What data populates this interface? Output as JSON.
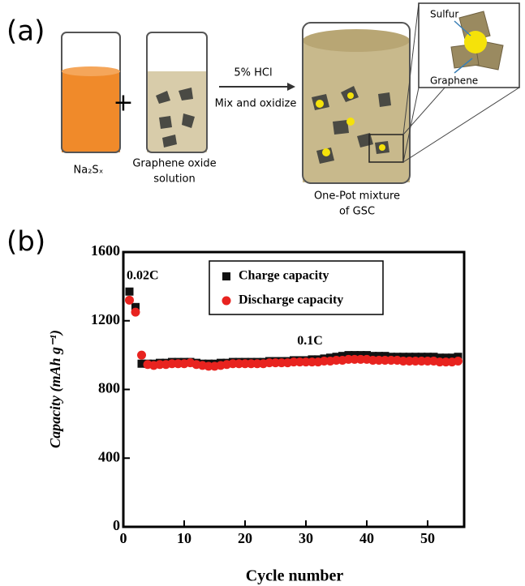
{
  "diagram": {
    "panel_label": "(a)",
    "reactant": "Na₂Sₓ",
    "plus": "+",
    "solution_line1": "Graphene oxide",
    "solution_line2": "solution",
    "reagent": "5% HCl",
    "process": "Mix and oxidize",
    "product_line1": "One-Pot mixture",
    "product_line2": "of GSC",
    "inset_sulfur": "Sulfur",
    "inset_graphene": "Graphene"
  },
  "chart_data": {
    "type": "scatter",
    "panel_label": "(b)",
    "x_label": "Cycle number",
    "y_label": "Capacity (mAh g⁻¹)",
    "annotations": [
      "0.02C",
      "0.1C"
    ],
    "xlim": [
      0,
      56
    ],
    "ylim": [
      0,
      1600
    ],
    "xticks": [
      0,
      10,
      20,
      30,
      40,
      50
    ],
    "yticks": [
      0,
      400,
      800,
      1200,
      1600
    ],
    "legend": "upper center",
    "x": [
      1,
      2,
      3,
      4,
      5,
      6,
      7,
      8,
      9,
      10,
      11,
      12,
      13,
      14,
      15,
      16,
      17,
      18,
      19,
      20,
      21,
      22,
      23,
      24,
      25,
      26,
      27,
      28,
      29,
      30,
      31,
      32,
      33,
      34,
      35,
      36,
      37,
      38,
      39,
      40,
      41,
      42,
      43,
      44,
      45,
      46,
      47,
      48,
      49,
      50,
      51,
      52,
      53,
      54,
      55
    ],
    "series": [
      {
        "name": "Charge capacity",
        "color": "#111111",
        "marker": "square",
        "values": [
          1370,
          1280,
          950,
          950,
          950,
          955,
          955,
          960,
          960,
          960,
          960,
          955,
          950,
          950,
          950,
          955,
          955,
          960,
          960,
          960,
          960,
          960,
          960,
          965,
          965,
          965,
          965,
          970,
          970,
          970,
          975,
          975,
          980,
          985,
          990,
          995,
          1000,
          1000,
          1000,
          1000,
          995,
          995,
          995,
          990,
          990,
          990,
          990,
          990,
          990,
          990,
          990,
          985,
          985,
          985,
          990
        ]
      },
      {
        "name": "Discharge capacity",
        "color": "#e8231f",
        "marker": "circle",
        "values": [
          1320,
          1250,
          1000,
          945,
          940,
          945,
          945,
          950,
          950,
          950,
          955,
          945,
          940,
          935,
          935,
          940,
          945,
          950,
          950,
          950,
          950,
          950,
          950,
          955,
          955,
          955,
          955,
          960,
          960,
          960,
          960,
          960,
          965,
          965,
          970,
          970,
          975,
          975,
          975,
          975,
          970,
          970,
          970,
          970,
          970,
          965,
          965,
          965,
          965,
          965,
          965,
          960,
          960,
          960,
          965
        ]
      }
    ]
  }
}
